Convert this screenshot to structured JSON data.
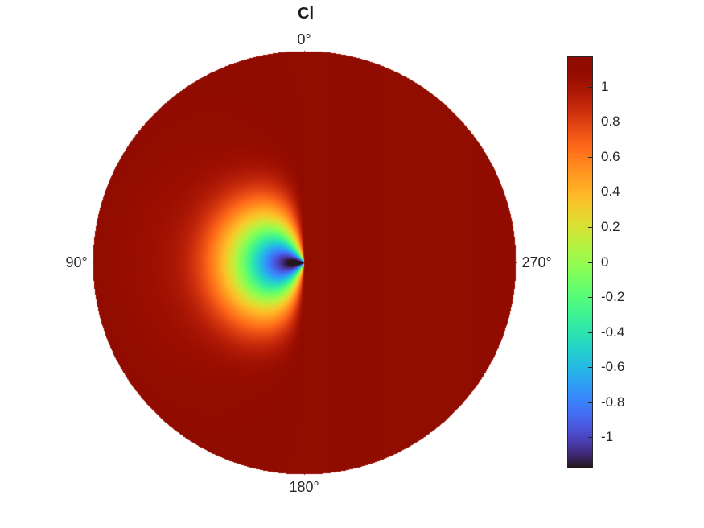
{
  "chart_data": {
    "type": "heatmap",
    "projection": "polar",
    "title": "Cl",
    "angle_labels": [
      {
        "text": "0°",
        "angle_deg": 0
      },
      {
        "text": "90°",
        "angle_deg": 90
      },
      {
        "text": "180°",
        "angle_deg": 180
      },
      {
        "text": "270°",
        "angle_deg": 270
      }
    ],
    "angle_direction": "counterclockwise",
    "zero_angle_location": "top",
    "field": {
      "description_of_values": "Cl ranges from about -1.17 near the center-left (low) to about 1.17 (high) over most of the disk",
      "min": -1.17,
      "max": 1.17,
      "low_region_center_angle_deg": 90,
      "low_region_radius_fraction": 0.12
    },
    "colorbar": {
      "colormap": "turbo",
      "limits": [
        -1.17,
        1.17
      ],
      "ticks": [
        {
          "value": 1,
          "label": "1"
        },
        {
          "value": 0.8,
          "label": "0.8"
        },
        {
          "value": 0.6,
          "label": "0.6"
        },
        {
          "value": 0.4,
          "label": "0.4"
        },
        {
          "value": 0.2,
          "label": "0.2"
        },
        {
          "value": 0,
          "label": "0"
        },
        {
          "value": -0.2,
          "label": "-0.2"
        },
        {
          "value": -0.4,
          "label": "-0.4"
        },
        {
          "value": -0.6,
          "label": "-0.6"
        },
        {
          "value": -0.8,
          "label": "-0.8"
        },
        {
          "value": -1,
          "label": "-1"
        }
      ]
    },
    "legend": "colorbar-right"
  }
}
